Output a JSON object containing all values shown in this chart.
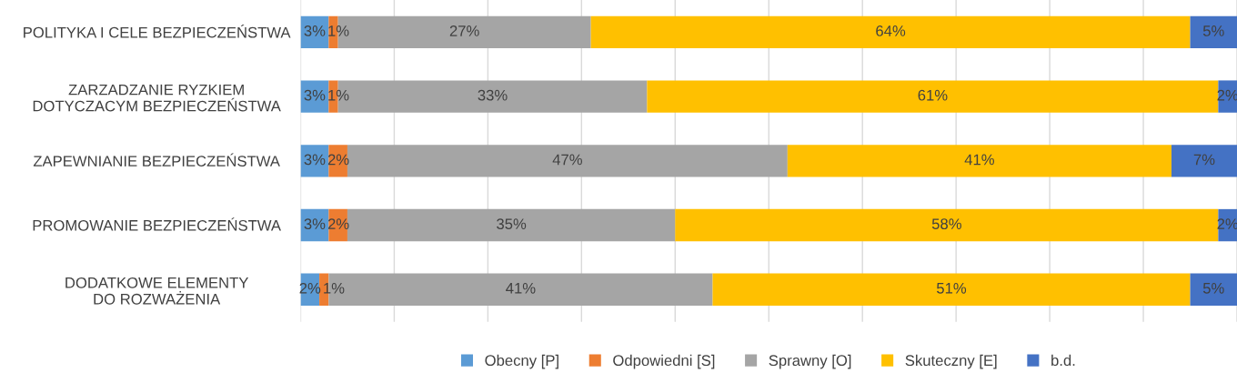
{
  "chart_data": {
    "type": "bar",
    "orientation": "horizontal",
    "stacked": true,
    "categories": [
      "POLITYKA I CELE BEZPIECZEŃSTWA",
      "ZARZADZANIE RYZKIEM\nDOTYCZACYM BEZPIECZEŃSTWA",
      "ZAPEWNIANIE BEZPIECZEŃSTWA",
      "PROMOWANIE BEZPIECZEŃSTWA",
      "DODATKOWE ELEMENTY\nDO ROZWAŻENIA"
    ],
    "series": [
      {
        "name": "Obecny [P]",
        "color": "#5b9bd5",
        "values": [
          3,
          3,
          3,
          3,
          2
        ],
        "value_labels": [
          "3%",
          "3%",
          "3%",
          "3%",
          "2%"
        ]
      },
      {
        "name": "Odpowiedni [S]",
        "color": "#ed7d31",
        "values": [
          1,
          1,
          2,
          2,
          1
        ],
        "value_labels": [
          "1%",
          "1%",
          "2%",
          "2%",
          "1%"
        ]
      },
      {
        "name": "Sprawny [O]",
        "color": "#a5a5a5",
        "values": [
          27,
          33,
          47,
          35,
          41
        ],
        "value_labels": [
          "27%",
          "33%",
          "47%",
          "35%",
          "41%"
        ]
      },
      {
        "name": "Skuteczny [E]",
        "color": "#ffc000",
        "values": [
          64,
          61,
          41,
          58,
          51
        ],
        "value_labels": [
          "64%",
          "61%",
          "41%",
          "58%",
          "51%"
        ]
      },
      {
        "name": "b.d.",
        "color": "#4472c4",
        "values": [
          5,
          2,
          7,
          2,
          5
        ],
        "value_labels": [
          "5%",
          "2%",
          "7%",
          "2%",
          "5%"
        ]
      }
    ],
    "xlim": [
      0,
      100
    ],
    "xticks": [
      {
        "value": 0,
        "label": null
      },
      {
        "value": 10,
        "label": null
      },
      {
        "value": 20,
        "label": null
      },
      {
        "value": 30,
        "label": null
      },
      {
        "value": 40,
        "label": null
      },
      {
        "value": 50,
        "label": null
      },
      {
        "value": 60,
        "label": null
      },
      {
        "value": 70,
        "label": null
      },
      {
        "value": 80,
        "label": null
      },
      {
        "value": 90,
        "label": null
      },
      {
        "value": 100,
        "label": null
      }
    ],
    "tick_labels": "y",
    "grid": "x",
    "legend": "bottom"
  }
}
